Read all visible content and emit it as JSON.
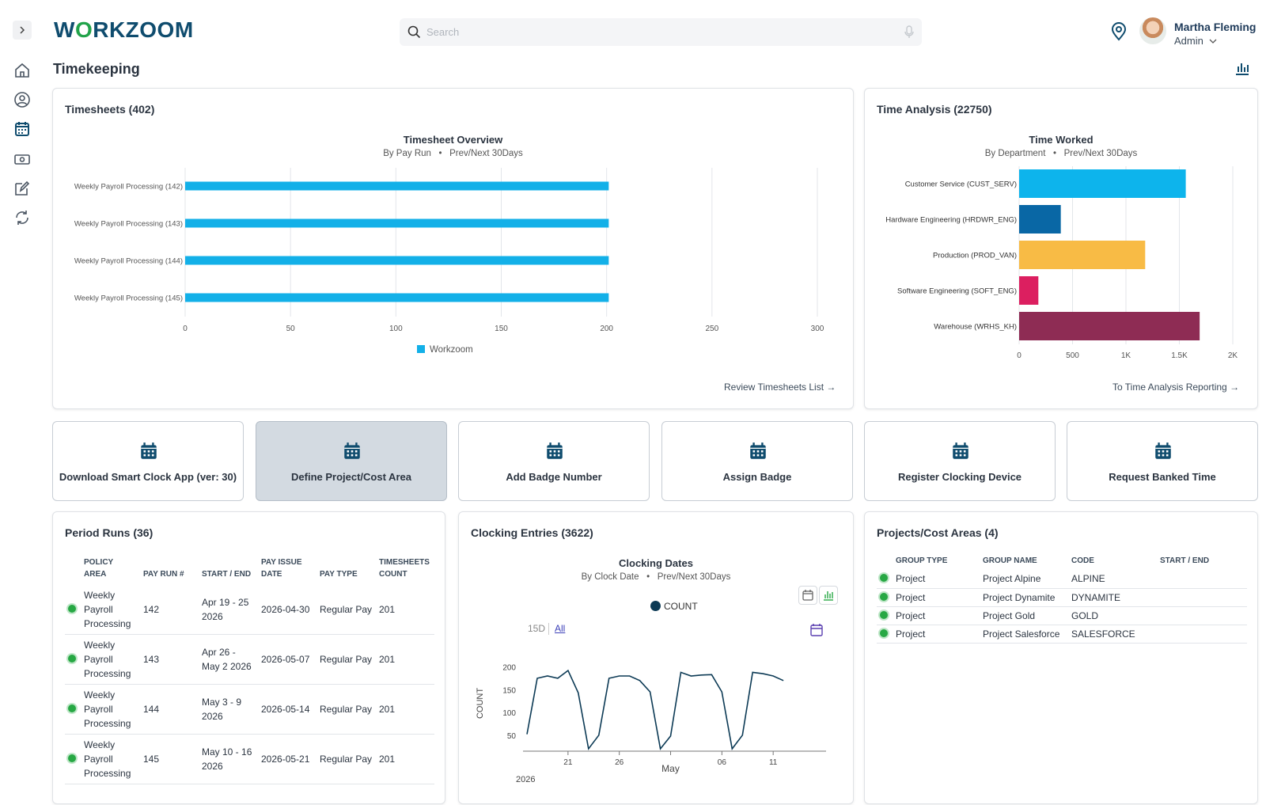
{
  "brand": {
    "logo_pre": "W",
    "logo_o": "O",
    "logo_post": "RKZOOM"
  },
  "search": {
    "placeholder": "Search"
  },
  "user": {
    "name": "Martha Fleming",
    "role": "Admin"
  },
  "page": {
    "title": "Timekeeping"
  },
  "timesheets": {
    "title": "Timesheets (402)",
    "link": "Review Timesheets List →",
    "chart_data": {
      "type": "bar",
      "orientation": "horizontal",
      "title": "Timesheet Overview",
      "subtitle_left": "By Pay Run",
      "subtitle_right": "Prev/Next 30Days",
      "categories": [
        "Weekly Payroll Processing (142)",
        "Weekly Payroll Processing (143)",
        "Weekly Payroll Processing (144)",
        "Weekly Payroll Processing (145)"
      ],
      "series": [
        {
          "name": "Workzoom",
          "values": [
            201,
            201,
            201,
            201
          ]
        }
      ],
      "xlim": [
        0,
        300
      ],
      "ticks": [
        "0",
        "50",
        "100",
        "150",
        "200",
        "250",
        "300"
      ],
      "color": "#13b0e8",
      "grid": true,
      "legend": "bottom"
    }
  },
  "time_analysis": {
    "title": "Time Analysis (22750)",
    "link": "To Time Analysis Reporting →",
    "chart_data": {
      "type": "bar",
      "orientation": "horizontal",
      "title": "Time Worked",
      "subtitle_left": "By Department",
      "subtitle_right": "Prev/Next 30Days",
      "categories": [
        "Customer Service (CUST_SERV)",
        "Hardware Engineering (HRDWR_ENG)",
        "Production (PROD_VAN)",
        "Software Engineering (SOFT_ENG)",
        "Warehouse (WRHS_KH)"
      ],
      "values": [
        1560,
        390,
        1180,
        180,
        1690
      ],
      "colors": [
        "#0db4ec",
        "#0967a5",
        "#f8bb45",
        "#dc1f60",
        "#8e2c54"
      ],
      "xlim": [
        0,
        2000
      ],
      "ticks": [
        "0",
        "500",
        "1K",
        "1.5K",
        "2K"
      ],
      "grid": true
    }
  },
  "tiles": [
    {
      "label": "Download Smart Clock App (ver: 30)"
    },
    {
      "label": "Define Project/Cost Area"
    },
    {
      "label": "Add Badge Number"
    },
    {
      "label": "Assign Badge"
    },
    {
      "label": "Register Clocking Device"
    },
    {
      "label": "Request Banked Time"
    }
  ],
  "period_runs": {
    "title": "Period Runs (36)",
    "columns": [
      "POLICY AREA",
      "PAY RUN #",
      "START / END",
      "PAY ISSUE DATE",
      "PAY TYPE",
      "TIMESHEETS COUNT"
    ],
    "rows": [
      {
        "policy": "Weekly Payroll Processing",
        "run": "142",
        "range": "Apr 19 - 25 2026",
        "issue": "2026-04-30",
        "type": "Regular Pay",
        "count": "201"
      },
      {
        "policy": "Weekly Payroll Processing",
        "run": "143",
        "range": "Apr 26 - May 2 2026",
        "issue": "2026-05-07",
        "type": "Regular Pay",
        "count": "201"
      },
      {
        "policy": "Weekly Payroll Processing",
        "run": "144",
        "range": "May 3 - 9 2026",
        "issue": "2026-05-14",
        "type": "Regular Pay",
        "count": "201"
      },
      {
        "policy": "Weekly Payroll Processing",
        "run": "145",
        "range": "May 10 - 16 2026",
        "issue": "2026-05-21",
        "type": "Regular Pay",
        "count": "201"
      }
    ]
  },
  "clocking": {
    "title": "Clocking Entries (3622)",
    "range_15d": "15D",
    "range_all": "All",
    "chart_data": {
      "type": "line",
      "title": "Clocking Dates",
      "subtitle_left": "By Clock Date",
      "subtitle_right": "Prev/Next 30Days",
      "legend": "COUNT",
      "ylabel": "COUNT",
      "x": [
        "2026-04-17",
        "2026-04-18",
        "2026-04-19",
        "2026-04-20",
        "2026-04-21",
        "2026-04-22",
        "2026-04-23",
        "2026-04-24",
        "2026-04-25",
        "2026-04-26",
        "2026-04-27",
        "2026-04-28",
        "2026-04-29",
        "2026-04-30",
        "2026-05-01",
        "2026-05-02",
        "2026-05-03",
        "2026-05-04",
        "2026-05-05",
        "2026-05-06",
        "2026-05-07",
        "2026-05-08",
        "2026-05-09",
        "2026-05-10",
        "2026-05-11",
        "2026-05-12",
        "2026-05-13",
        "2026-05-14",
        "2026-05-15",
        "2026-05-16"
      ],
      "values": [
        52,
        175,
        180,
        175,
        192,
        143,
        20,
        50,
        175,
        180,
        180,
        170,
        145,
        20,
        48,
        188,
        180,
        182,
        183,
        145,
        20,
        50,
        188,
        185,
        180,
        170,
        0,
        0,
        0,
        0
      ],
      "ylim": [
        20,
        220
      ],
      "yticks": [
        "50",
        "100",
        "150",
        "200"
      ],
      "xticks": [
        "21",
        "26",
        "May",
        "06",
        "11"
      ],
      "year_label": "2026",
      "color": "#0c3a55"
    }
  },
  "projects": {
    "title": "Projects/Cost Areas (4)",
    "columns": [
      "GROUP TYPE",
      "GROUP NAME",
      "CODE",
      "START / END"
    ],
    "rows": [
      {
        "type": "Project",
        "name": "Project Alpine",
        "code": "ALPINE",
        "range": ""
      },
      {
        "type": "Project",
        "name": "Project Dynamite",
        "code": "DYNAMITE",
        "range": ""
      },
      {
        "type": "Project",
        "name": "Project Gold",
        "code": "GOLD",
        "range": ""
      },
      {
        "type": "Project",
        "name": "Project Salesforce",
        "code": "SALESFORCE",
        "range": ""
      }
    ]
  },
  "colors": {
    "accent": "#0f4c6e",
    "green": "#27a844",
    "cyan": "#13b0e8"
  }
}
